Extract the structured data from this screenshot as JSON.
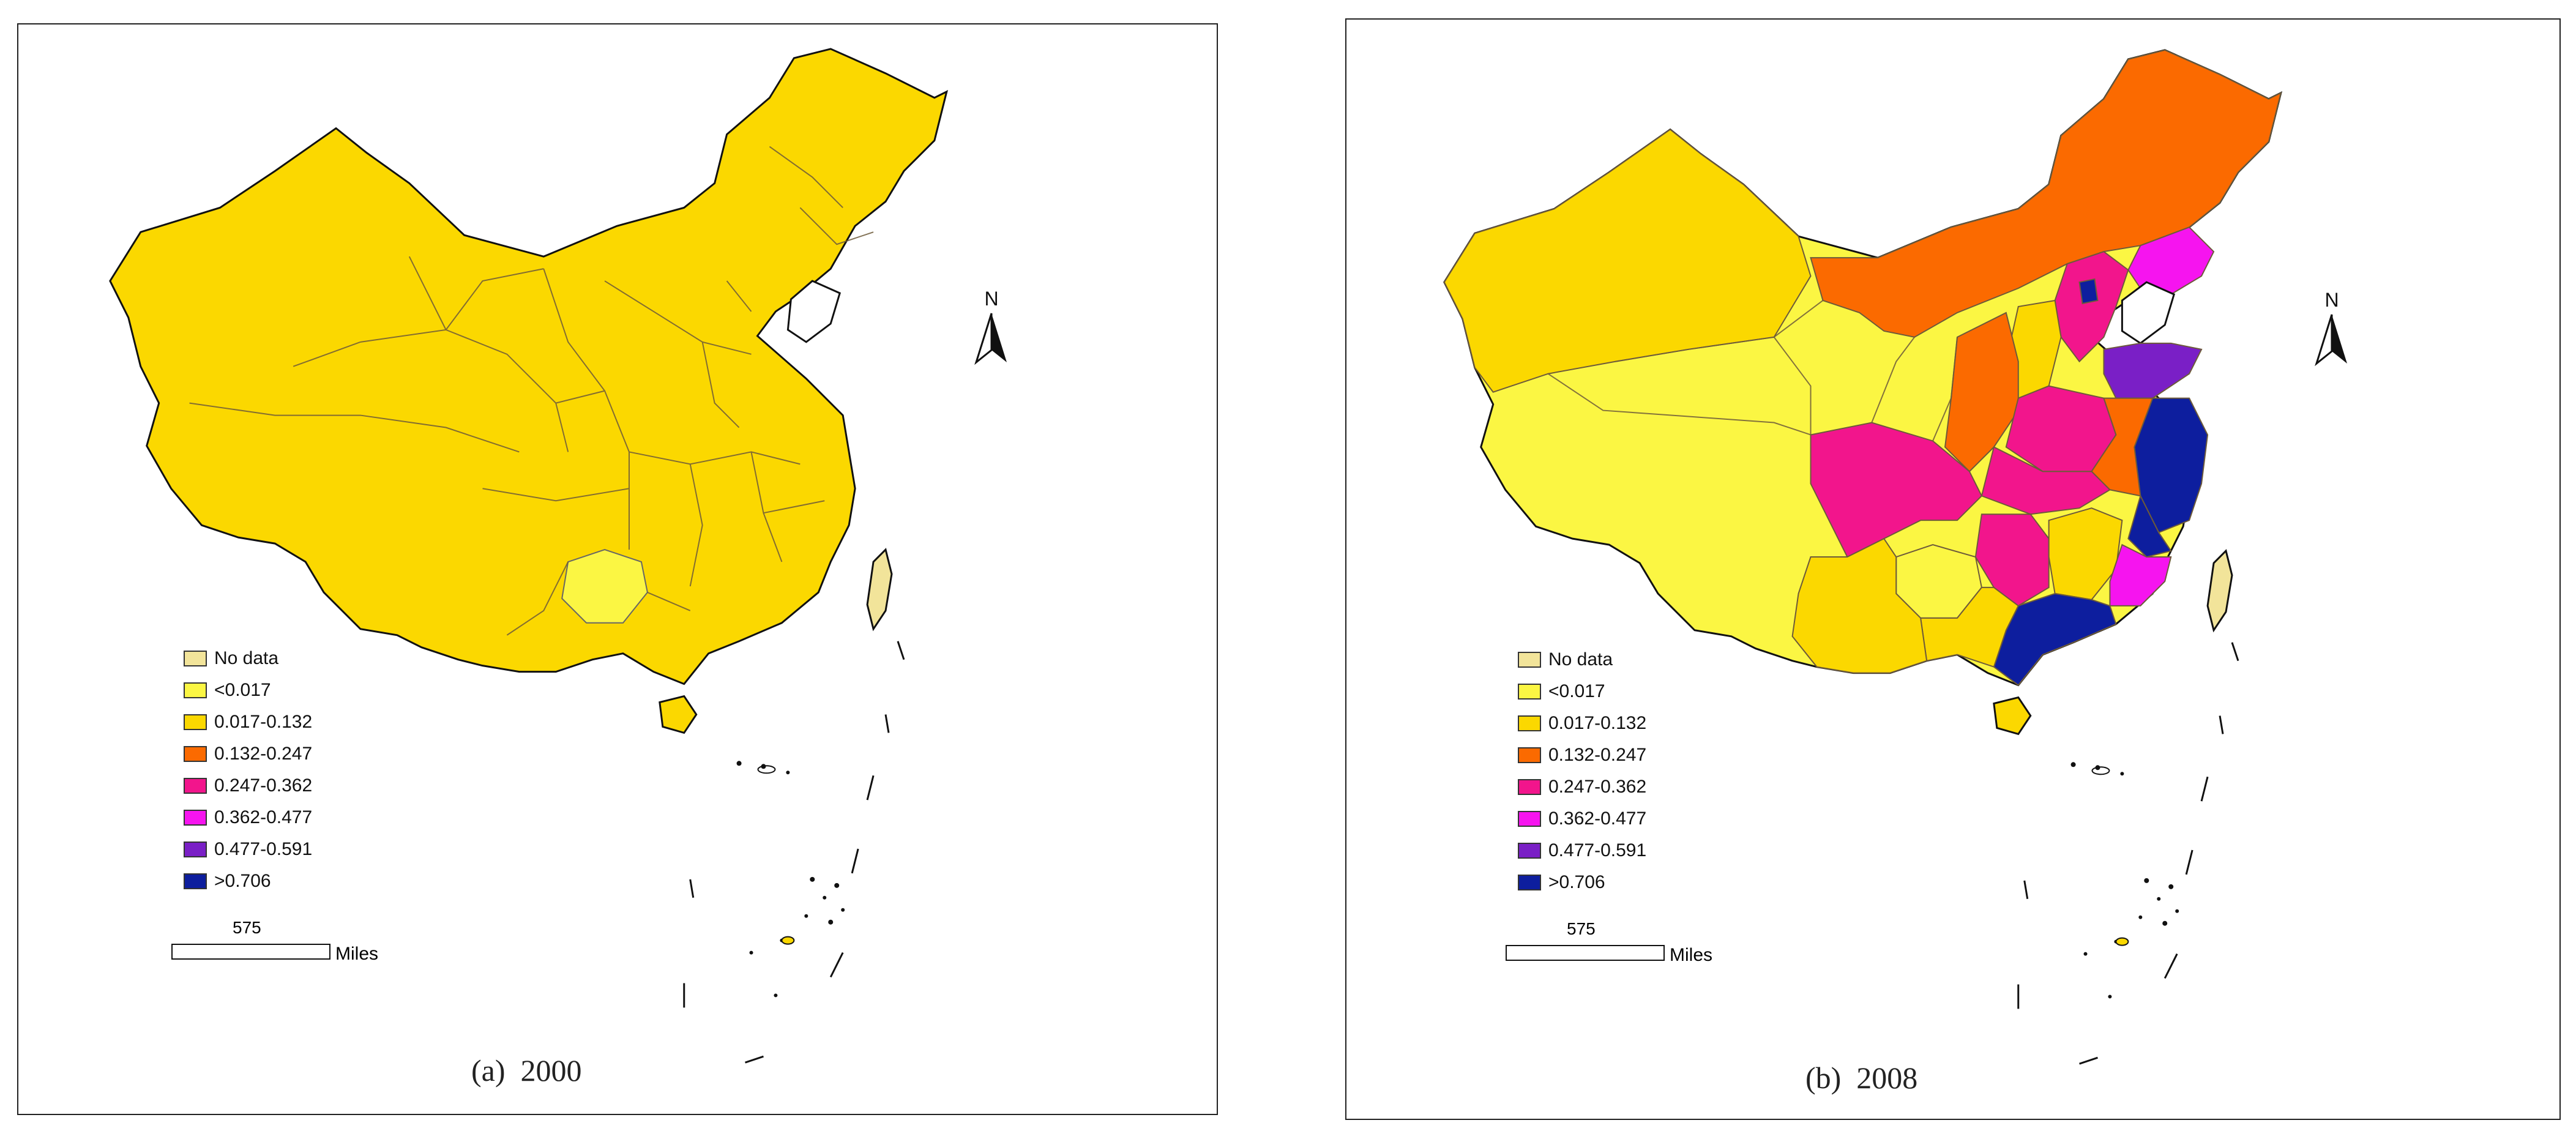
{
  "colors": {
    "no_data": "#f2e49a",
    "c1": "#fbf643",
    "c2": "#fbd800",
    "c3": "#fb6a00",
    "c4": "#f2158c",
    "c5": "#f614ef",
    "c6": "#7a1fc6",
    "c7": "#0d1e9e",
    "outline": "#333333"
  },
  "legend": [
    {
      "label": "No data",
      "color": "#f2e49a"
    },
    {
      "label": "<0.017",
      "color": "#fbf643"
    },
    {
      "label": "0.017-0.132",
      "color": "#fbd800"
    },
    {
      "label": "0.132-0.247",
      "color": "#fb6a00"
    },
    {
      "label": "0.247-0.362",
      "color": "#f2158c"
    },
    {
      "label": "0.362-0.477",
      "color": "#f614ef"
    },
    {
      "label": "0.477-0.591",
      "color": "#7a1fc6"
    },
    {
      "label": ">0.706",
      "color": "#0d1e9e"
    }
  ],
  "north_label": "N",
  "scale": {
    "value": "575",
    "unit": "Miles"
  },
  "panels": [
    {
      "caption": "(a)  2000"
    },
    {
      "caption": "(b)  2008"
    }
  ]
}
